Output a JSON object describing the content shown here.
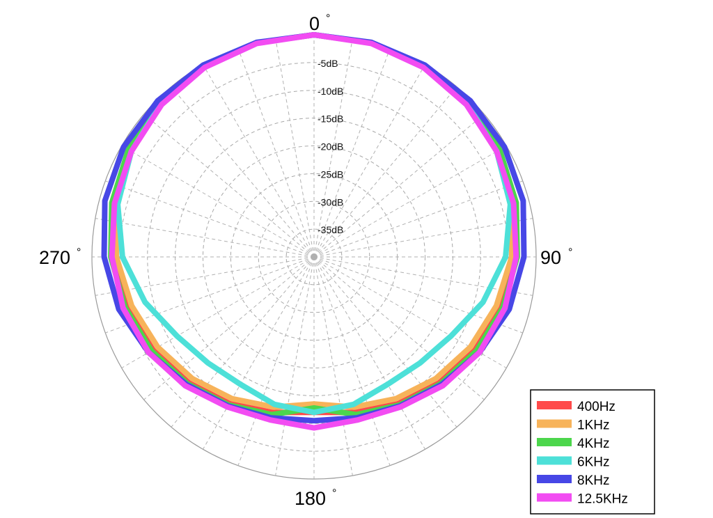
{
  "chart_data": {
    "type": "polar-line",
    "title": "",
    "angle_labels": [
      {
        "angle": 0,
        "text": "0"
      },
      {
        "angle": 90,
        "text": "90"
      },
      {
        "angle": 180,
        "text": "180"
      },
      {
        "angle": 270,
        "text": "270"
      }
    ],
    "degree_symbol": "°",
    "radial_axis": {
      "unit": "dB",
      "range": [
        -40,
        0
      ],
      "ticks": [
        -5,
        -10,
        -15,
        -20,
        -25,
        -30,
        -35
      ],
      "tick_labels": [
        "-5dB",
        "-10dB",
        "-15dB",
        "-20dB",
        "-25dB",
        "-30dB",
        "-35dB"
      ]
    },
    "grid": true,
    "legend": "bottom-right",
    "series": [
      {
        "name": "400Hz",
        "color": "#ff4a4a",
        "angles": [
          0,
          15,
          30,
          45,
          60,
          75,
          90,
          105,
          120,
          135,
          150,
          165,
          180,
          195,
          210,
          225,
          240,
          255,
          270,
          285,
          300,
          315,
          330,
          345
        ],
        "values": [
          0,
          -0.1,
          -0.4,
          -0.9,
          -1.6,
          -2.5,
          -3.6,
          -5,
          -6.5,
          -8,
          -9.5,
          -11,
          -12,
          -11,
          -9.5,
          -8,
          -6.5,
          -5,
          -3.6,
          -2.5,
          -1.6,
          -0.9,
          -0.4,
          -0.1
        ]
      },
      {
        "name": "1KHz",
        "color": "#f7b35a",
        "angles": [
          0,
          15,
          30,
          45,
          60,
          75,
          90,
          105,
          120,
          135,
          150,
          165,
          180,
          195,
          210,
          225,
          240,
          255,
          270,
          285,
          300,
          315,
          330,
          345
        ],
        "values": [
          0,
          -0.1,
          -0.5,
          -1.1,
          -2,
          -3.1,
          -4.4,
          -6,
          -7.5,
          -9,
          -10.5,
          -12,
          -13.5,
          -12,
          -10.5,
          -9,
          -7.5,
          -6,
          -4.4,
          -3.1,
          -2,
          -1.1,
          -0.5,
          -0.1
        ]
      },
      {
        "name": "4KHz",
        "color": "#4cd64c",
        "angles": [
          0,
          15,
          30,
          45,
          60,
          75,
          90,
          105,
          120,
          135,
          150,
          165,
          180,
          195,
          210,
          225,
          240,
          255,
          270,
          285,
          300,
          315,
          330,
          345
        ],
        "values": [
          0,
          -0.1,
          -0.3,
          -0.8,
          -1.4,
          -2.3,
          -3.4,
          -4.8,
          -6.2,
          -7.7,
          -9.2,
          -10.6,
          -12.8,
          -10.6,
          -9.2,
          -7.7,
          -6.2,
          -4.8,
          -3.4,
          -2.3,
          -1.4,
          -0.8,
          -0.3,
          -0.1
        ]
      },
      {
        "name": "6KHz",
        "color": "#4de0d8",
        "angles": [
          0,
          15,
          30,
          45,
          60,
          75,
          90,
          105,
          120,
          135,
          150,
          165,
          180,
          195,
          210,
          225,
          240,
          255,
          270,
          285,
          300,
          315,
          330,
          345
        ],
        "values": [
          0,
          -0.1,
          -0.4,
          -1,
          -2,
          -3.4,
          -5.5,
          -8.5,
          -11.5,
          -13,
          -13.5,
          -12.5,
          -12,
          -12.5,
          -13.5,
          -13,
          -11.5,
          -8.5,
          -5.5,
          -3.4,
          -2,
          -1,
          -0.4,
          -0.1
        ]
      },
      {
        "name": "8KHz",
        "color": "#4747e6",
        "angles": [
          0,
          15,
          30,
          45,
          60,
          75,
          90,
          105,
          120,
          135,
          150,
          165,
          180,
          195,
          210,
          225,
          240,
          255,
          270,
          285,
          300,
          315,
          330,
          345
        ],
        "values": [
          0,
          0,
          -0.1,
          -0.2,
          -0.4,
          -1,
          -2.2,
          -3.6,
          -5.6,
          -7.5,
          -9,
          -10,
          -10.5,
          -10,
          -9,
          -7.5,
          -5.6,
          -3.6,
          -2.2,
          -1,
          -0.4,
          -0.2,
          -0.1,
          0
        ]
      },
      {
        "name": "12.5KHz",
        "color": "#f24cf2",
        "angles": [
          0,
          15,
          30,
          45,
          60,
          75,
          90,
          105,
          120,
          135,
          150,
          165,
          180,
          195,
          210,
          225,
          240,
          255,
          270,
          285,
          300,
          315,
          330,
          345
        ],
        "values": [
          0,
          -0.2,
          -0.6,
          -1.2,
          -2,
          -2.8,
          -3.6,
          -4.4,
          -5.6,
          -7.2,
          -8.8,
          -9.6,
          -9.2,
          -9.6,
          -8.8,
          -7.2,
          -5.6,
          -4.4,
          -3.6,
          -2.8,
          -2,
          -1.2,
          -0.6,
          -0.2
        ]
      }
    ]
  }
}
